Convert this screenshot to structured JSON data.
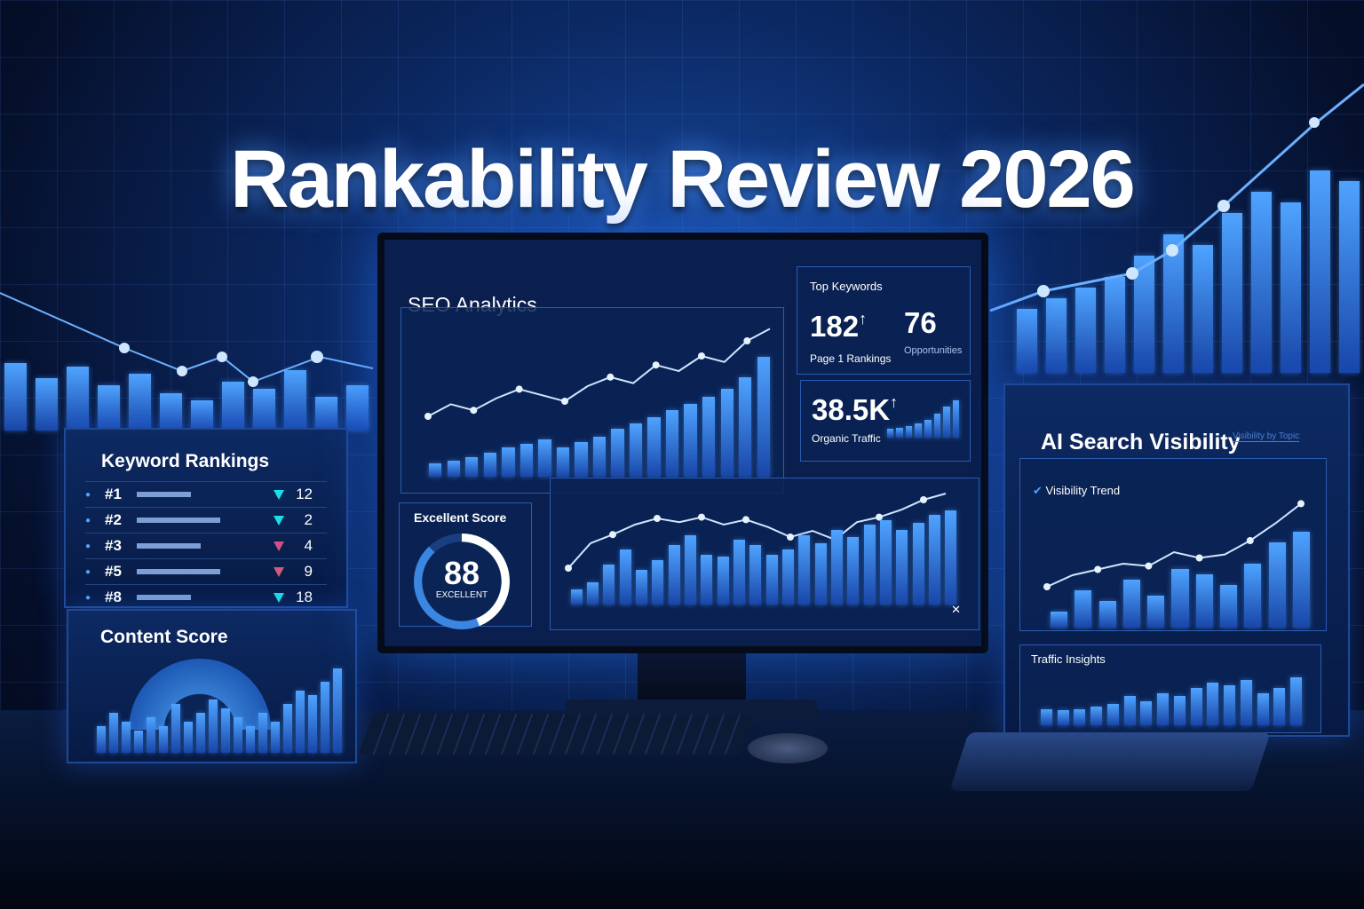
{
  "title": "Rankability Review 2026",
  "keyword_rankings": {
    "title": "Keyword Rankings",
    "rows": [
      {
        "rank": "#1",
        "bar": 0.55,
        "trend": "down",
        "color": "#19e0e8",
        "value": "12"
      },
      {
        "rank": "#2",
        "bar": 0.85,
        "trend": "down",
        "color": "#19e0e8",
        "value": "2"
      },
      {
        "rank": "#3",
        "bar": 0.65,
        "trend": "down",
        "color": "#d0508a",
        "value": "4"
      },
      {
        "rank": "#5",
        "bar": 0.85,
        "trend": "down",
        "color": "#d05a78",
        "value": "9"
      },
      {
        "rank": "#8",
        "bar": 0.55,
        "trend": "down",
        "color": "#19e0e8",
        "value": "18"
      }
    ]
  },
  "content_score": {
    "title": "Content Score",
    "bars": [
      30,
      45,
      35,
      25,
      40,
      30,
      55,
      35,
      45,
      60,
      50,
      40,
      30,
      45,
      35,
      55,
      70,
      65,
      80,
      95
    ]
  },
  "seo_analytics": {
    "title": "SEO Analytics",
    "bars": [
      10,
      12,
      15,
      18,
      22,
      25,
      28,
      22,
      26,
      30,
      36,
      40,
      45,
      50,
      55,
      60,
      66,
      75,
      90
    ],
    "line": [
      40,
      48,
      44,
      52,
      58,
      54,
      50,
      60,
      66,
      62,
      74,
      70,
      80,
      76,
      90,
      98
    ]
  },
  "top_keywords": {
    "title": "Top Keywords",
    "page1_value": "182",
    "page1_label": "Page 1 Rankings",
    "opp_value": "76",
    "opp_label": "Opportunities"
  },
  "organic_traffic": {
    "value": "38.5K",
    "label": "Organic Traffic",
    "bars": [
      20,
      22,
      26,
      32,
      40,
      55,
      70,
      85
    ]
  },
  "score": {
    "title": "Excellent Score",
    "value": "88",
    "label": "EXCELLENT",
    "percent": 88
  },
  "lower_chart": {
    "bars": [
      15,
      22,
      40,
      55,
      35,
      45,
      60,
      70,
      50,
      48,
      65,
      60,
      50,
      55,
      70,
      62,
      75,
      68,
      80,
      85,
      75,
      82,
      90,
      95
    ],
    "line": [
      35,
      55,
      62,
      70,
      75,
      72,
      76,
      70,
      74,
      68,
      60,
      65,
      58,
      72,
      76,
      82,
      90,
      95
    ]
  },
  "ai_visibility": {
    "title": "AI Search Visibility",
    "subtitle": "Visibility by Topic",
    "trend_title": "Visibility Trend",
    "bars": [
      15,
      35,
      25,
      45,
      30,
      55,
      50,
      40,
      60,
      80,
      90
    ],
    "line": [
      20,
      30,
      35,
      40,
      38,
      50,
      45,
      48,
      60,
      75,
      92
    ]
  },
  "traffic_insights": {
    "title": "Traffic Insights",
    "bars": [
      30,
      28,
      30,
      35,
      40,
      55,
      45,
      60,
      55,
      70,
      80,
      75,
      85,
      60,
      70,
      90
    ]
  },
  "colors": {
    "accent": "#4fa3ff",
    "background": "#0c2a66",
    "up": "#19e0e8",
    "down": "#d0508a"
  }
}
